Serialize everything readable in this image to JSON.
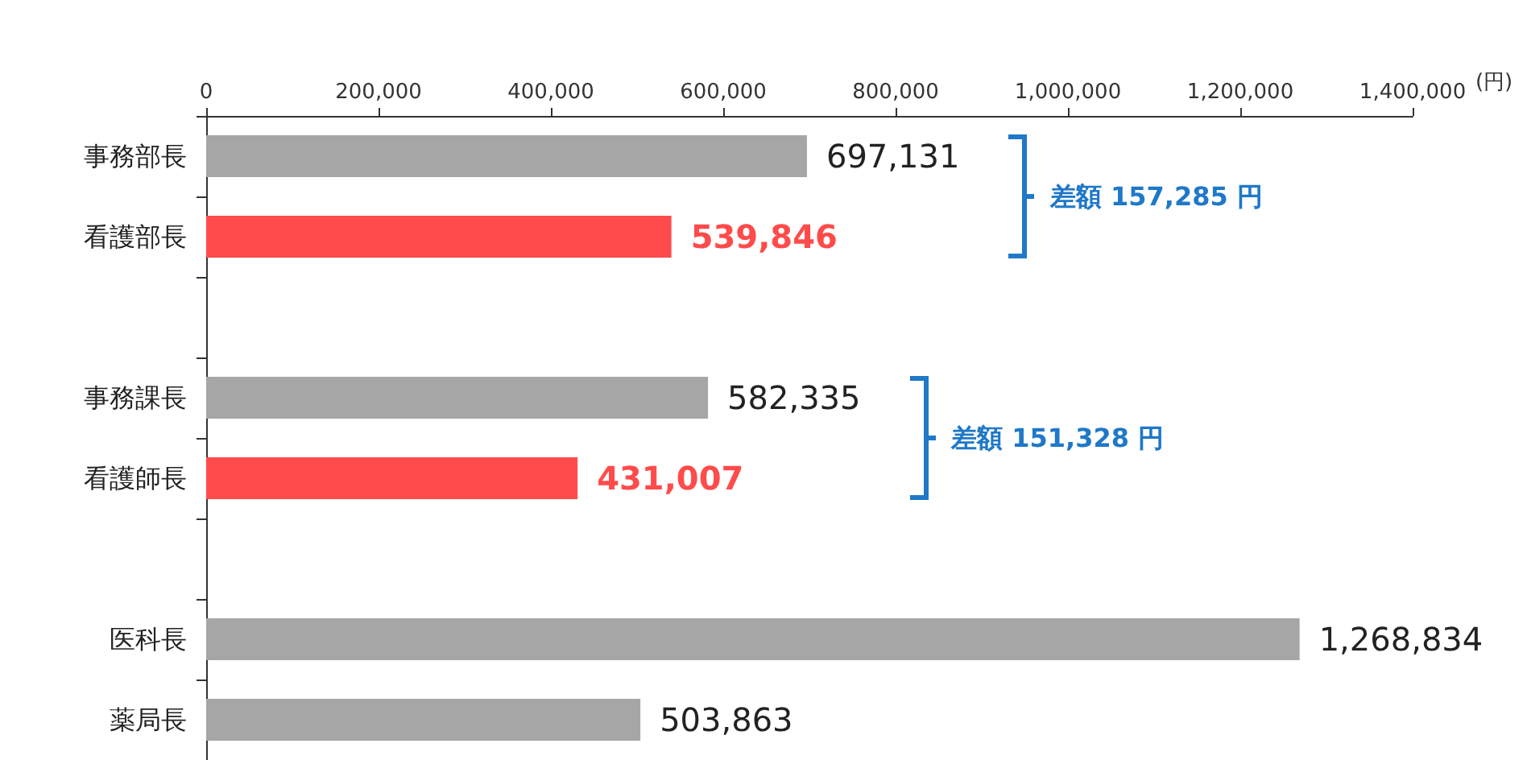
{
  "chart_data": {
    "type": "bar",
    "orientation": "horizontal",
    "xlabel": "(円)",
    "categories": [
      "事務部長",
      "看護部長",
      null,
      "事務課長",
      "看護師長",
      null,
      "医科長",
      "薬局長"
    ],
    "values": [
      697131,
      539846,
      null,
      582335,
      431007,
      null,
      1268834,
      503863
    ],
    "colors": [
      "#a6a6a6",
      "#ff4b4b",
      null,
      "#a6a6a6",
      "#ff4b4b",
      null,
      "#a6a6a6",
      "#a6a6a6"
    ],
    "value_labels": [
      "697,131",
      "539,846",
      null,
      "582,335",
      "431,007",
      null,
      "1,268,834",
      "503,863"
    ],
    "xlim": [
      0,
      1400000
    ],
    "xticks": [
      {
        "value": 0,
        "label": "0"
      },
      {
        "value": 200000,
        "label": "200,000"
      },
      {
        "value": 400000,
        "label": "400,000"
      },
      {
        "value": 600000,
        "label": "600,000"
      },
      {
        "value": 800000,
        "label": "800,000"
      },
      {
        "value": 1000000,
        "label": "1,000,000"
      },
      {
        "value": 1200000,
        "label": "1,200,000"
      },
      {
        "value": 1400000,
        "label": "1,400,000"
      }
    ],
    "annotations": [
      "差額 157,285 円",
      "差額 151,328 円"
    ],
    "grid": false
  }
}
